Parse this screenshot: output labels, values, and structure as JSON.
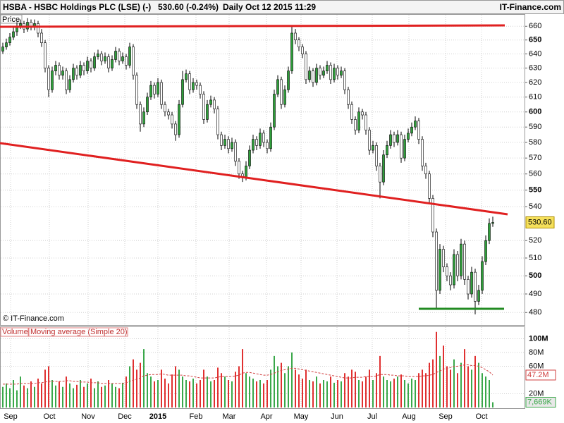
{
  "header": {
    "symbol": "HSBA - HSBC Holdings PLC (LSE) (-)",
    "quote": "530.60 (-0.24%)",
    "period": "Daily  Oct 12 2015 11:29",
    "site": "IT-Finance.com"
  },
  "chart_data": [
    {
      "type": "candlestick",
      "panel_label": "Price",
      "copyright": "© IT-Finance.com",
      "log_scale": true,
      "grid": true,
      "up_color": "#2e9e3a",
      "down_color": "#ffffff",
      "ylim": [
        473,
        669
      ],
      "yticks": [
        480,
        490,
        500,
        510,
        520,
        540,
        550,
        560,
        570,
        580,
        590,
        600,
        610,
        620,
        630,
        640,
        650,
        660
      ],
      "last_label": "530.60",
      "candles": [
        [
          642,
          648,
          640,
          645
        ],
        [
          645,
          651,
          643,
          648
        ],
        [
          648,
          655,
          646,
          652
        ],
        [
          652,
          659,
          650,
          656
        ],
        [
          656,
          663,
          653,
          660
        ],
        [
          660,
          665,
          658,
          662
        ],
        [
          662,
          664,
          655,
          658
        ],
        [
          658,
          666,
          656,
          663
        ],
        [
          663,
          665,
          657,
          660
        ],
        [
          660,
          665,
          657,
          662
        ],
        [
          662,
          664,
          652,
          655
        ],
        [
          655,
          658,
          645,
          648
        ],
        [
          648,
          650,
          627,
          630
        ],
        [
          630,
          632,
          610,
          615
        ],
        [
          615,
          631,
          613,
          628
        ],
        [
          628,
          635,
          625,
          632
        ],
        [
          632,
          634,
          622,
          625
        ],
        [
          625,
          631,
          622,
          628
        ],
        [
          628,
          630,
          612,
          615
        ],
        [
          615,
          625,
          613,
          622
        ],
        [
          622,
          633,
          620,
          630
        ],
        [
          630,
          632,
          622,
          625
        ],
        [
          625,
          635,
          623,
          632
        ],
        [
          632,
          634,
          625,
          628
        ],
        [
          628,
          638,
          626,
          635
        ],
        [
          635,
          637,
          627,
          630
        ],
        [
          630,
          641,
          628,
          638
        ],
        [
          638,
          643,
          636,
          640
        ],
        [
          640,
          642,
          632,
          635
        ],
        [
          635,
          641,
          633,
          638
        ],
        [
          638,
          640,
          627,
          630
        ],
        [
          630,
          639,
          628,
          636
        ],
        [
          636,
          645,
          634,
          642
        ],
        [
          642,
          644,
          632,
          635
        ],
        [
          635,
          641,
          633,
          638
        ],
        [
          638,
          640,
          629,
          632
        ],
        [
          632,
          648,
          630,
          645
        ],
        [
          645,
          647,
          622,
          625
        ],
        [
          625,
          627,
          602,
          605
        ],
        [
          605,
          607,
          587,
          592
        ],
        [
          592,
          603,
          590,
          600
        ],
        [
          600,
          613,
          598,
          610
        ],
        [
          610,
          621,
          608,
          618
        ],
        [
          618,
          620,
          609,
          612
        ],
        [
          612,
          623,
          610,
          620
        ],
        [
          620,
          622,
          602,
          605
        ],
        [
          605,
          607,
          597,
          600
        ],
        [
          600,
          602,
          595,
          598
        ],
        [
          598,
          600,
          589,
          592
        ],
        [
          592,
          594,
          581,
          585
        ],
        [
          585,
          608,
          583,
          605
        ],
        [
          605,
          628,
          603,
          622
        ],
        [
          622,
          629,
          620,
          626
        ],
        [
          626,
          628,
          612,
          615
        ],
        [
          615,
          623,
          613,
          620
        ],
        [
          620,
          622,
          615,
          618
        ],
        [
          618,
          620,
          609,
          612
        ],
        [
          612,
          614,
          592,
          595
        ],
        [
          595,
          608,
          593,
          605
        ],
        [
          605,
          611,
          603,
          608
        ],
        [
          608,
          610,
          599,
          602
        ],
        [
          602,
          604,
          582,
          585
        ],
        [
          585,
          587,
          575,
          578
        ],
        [
          578,
          585,
          576,
          582
        ],
        [
          582,
          584,
          573,
          576
        ],
        [
          576,
          583,
          574,
          580
        ],
        [
          580,
          582,
          565,
          568
        ],
        [
          568,
          570,
          557,
          560
        ],
        [
          560,
          562,
          555,
          558
        ],
        [
          558,
          568,
          556,
          565
        ],
        [
          565,
          578,
          563,
          575
        ],
        [
          575,
          585,
          573,
          582
        ],
        [
          582,
          584,
          575,
          578
        ],
        [
          578,
          589,
          576,
          586
        ],
        [
          586,
          588,
          577,
          580
        ],
        [
          580,
          582,
          573,
          576
        ],
        [
          576,
          593,
          574,
          590
        ],
        [
          590,
          615,
          588,
          612
        ],
        [
          612,
          625,
          610,
          622
        ],
        [
          622,
          624,
          602,
          605
        ],
        [
          605,
          618,
          603,
          615
        ],
        [
          615,
          631,
          613,
          628
        ],
        [
          628,
          660,
          626,
          655
        ],
        [
          655,
          658,
          647,
          650
        ],
        [
          650,
          652,
          642,
          645
        ],
        [
          645,
          647,
          637,
          640
        ],
        [
          640,
          642,
          619,
          622
        ],
        [
          622,
          631,
          620,
          628
        ],
        [
          628,
          630,
          617,
          620
        ],
        [
          620,
          633,
          618,
          630
        ],
        [
          630,
          632,
          622,
          625
        ],
        [
          625,
          631,
          623,
          628
        ],
        [
          628,
          635,
          626,
          632
        ],
        [
          632,
          634,
          619,
          622
        ],
        [
          622,
          633,
          620,
          630
        ],
        [
          630,
          632,
          622,
          625
        ],
        [
          625,
          631,
          623,
          628
        ],
        [
          628,
          630,
          612,
          615
        ],
        [
          615,
          617,
          602,
          605
        ],
        [
          605,
          607,
          592,
          595
        ],
        [
          595,
          597,
          585,
          588
        ],
        [
          588,
          603,
          586,
          600
        ],
        [
          600,
          602,
          595,
          598
        ],
        [
          598,
          600,
          585,
          588
        ],
        [
          588,
          590,
          572,
          575
        ],
        [
          575,
          581,
          573,
          578
        ],
        [
          578,
          580,
          562,
          565
        ],
        [
          565,
          567,
          545,
          555
        ],
        [
          555,
          575,
          553,
          572
        ],
        [
          572,
          581,
          570,
          578
        ],
        [
          578,
          588,
          576,
          585
        ],
        [
          585,
          587,
          577,
          580
        ],
        [
          580,
          588,
          578,
          585
        ],
        [
          585,
          587,
          567,
          570
        ],
        [
          570,
          585,
          568,
          582
        ],
        [
          582,
          589,
          580,
          586
        ],
        [
          586,
          593,
          584,
          590
        ],
        [
          590,
          597,
          588,
          594
        ],
        [
          594,
          596,
          579,
          582
        ],
        [
          582,
          584,
          562,
          565
        ],
        [
          565,
          567,
          557,
          560
        ],
        [
          560,
          562,
          542,
          545
        ],
        [
          545,
          547,
          522,
          525
        ],
        [
          525,
          527,
          482,
          492
        ],
        [
          492,
          518,
          490,
          515
        ],
        [
          515,
          517,
          502,
          505
        ],
        [
          505,
          507,
          497,
          500
        ],
        [
          500,
          502,
          492,
          495
        ],
        [
          495,
          515,
          493,
          512
        ],
        [
          512,
          514,
          497,
          500
        ],
        [
          500,
          521,
          498,
          518
        ],
        [
          518,
          520,
          495,
          498
        ],
        [
          498,
          500,
          487,
          490
        ],
        [
          490,
          505,
          488,
          502
        ],
        [
          502,
          504,
          479,
          486
        ],
        [
          486,
          495,
          484,
          492
        ],
        [
          492,
          511,
          490,
          508
        ],
        [
          508,
          523,
          506,
          520
        ],
        [
          520,
          533,
          518,
          530
        ],
        [
          530,
          534,
          528,
          530.6
        ]
      ]
    },
    {
      "type": "bar",
      "legend": [
        "Volume",
        "Moving average (Simple 20)"
      ],
      "grid": true,
      "ylim": [
        0,
        120
      ],
      "yticks": [
        {
          "value": 20,
          "label": "20M"
        },
        {
          "value": 60,
          "label": "60M"
        },
        {
          "value": 80,
          "label": "80M"
        },
        {
          "value": 100,
          "label": "100M"
        }
      ],
      "xticks": [
        {
          "value": 2.2,
          "label": "Sep"
        },
        {
          "value": 13.2,
          "label": "Oct"
        },
        {
          "value": 24.2,
          "label": "Nov"
        },
        {
          "value": 34.6,
          "label": "Dec"
        },
        {
          "value": 44,
          "label": "2015"
        },
        {
          "value": 54.8,
          "label": "Feb"
        },
        {
          "value": 64.2,
          "label": "Mar"
        },
        {
          "value": 74.8,
          "label": "Apr"
        },
        {
          "value": 84.6,
          "label": "May"
        },
        {
          "value": 94.8,
          "label": "Jun"
        },
        {
          "value": 104.8,
          "label": "Jul"
        },
        {
          "value": 115.2,
          "label": "Aug"
        },
        {
          "value": 125.6,
          "label": "Sep"
        },
        {
          "value": 135.8,
          "label": "Oct"
        }
      ],
      "series": [
        {
          "name": "Volume",
          "color": "#3aa84a",
          "down_color": "#e03030",
          "values": [
            30,
            35,
            28,
            40,
            25,
            45,
            32,
            28,
            38,
            30,
            42,
            35,
            55,
            60,
            40,
            32,
            38,
            30,
            45,
            35,
            28,
            33,
            40,
            30,
            35,
            42,
            28,
            38,
            30,
            32,
            40,
            35,
            30,
            28,
            36,
            45,
            60,
            70,
            55,
            65,
            85,
            50,
            45,
            38,
            40,
            55,
            42,
            35,
            48,
            60,
            55,
            45,
            40,
            38,
            42,
            35,
            40,
            55,
            45,
            38,
            40,
            58,
            50,
            45,
            40,
            38,
            52,
            60,
            85,
            50,
            45,
            42,
            38,
            40,
            35,
            40,
            55,
            75,
            60,
            65,
            50,
            60,
            80,
            55,
            48,
            42,
            55,
            40,
            38,
            45,
            35,
            40,
            38,
            45,
            36,
            40,
            38,
            50,
            45,
            55,
            52,
            40,
            38,
            45,
            55,
            40,
            50,
            75,
            45,
            40,
            38,
            42,
            45,
            48,
            40,
            35,
            42,
            40,
            50,
            55,
            50,
            65,
            70,
            110,
            75,
            90,
            60,
            55,
            70,
            50,
            65,
            85,
            60,
            55,
            75,
            65,
            50,
            45,
            40,
            7.669
          ],
          "last_label": "7,669K"
        },
        {
          "name": "Moving average (Simple 20)",
          "color": "#d04040",
          "values": [
            34,
            34,
            34,
            34,
            34,
            35,
            35,
            35,
            35,
            35,
            36,
            36,
            37,
            38,
            38,
            38,
            38,
            38,
            39,
            39,
            38,
            38,
            37,
            37,
            37,
            36,
            36,
            36,
            35,
            35,
            35,
            35,
            35,
            35,
            35,
            36,
            38,
            40,
            41,
            43,
            46,
            47,
            48,
            48,
            48,
            49,
            48,
            47,
            47,
            47,
            47,
            47,
            46,
            46,
            45,
            44,
            43,
            43,
            43,
            43,
            43,
            44,
            45,
            45,
            45,
            45,
            46,
            47,
            50,
            51,
            51,
            50,
            49,
            48,
            47,
            47,
            48,
            50,
            52,
            54,
            55,
            56,
            57,
            57,
            56,
            55,
            54,
            53,
            52,
            51,
            50,
            49,
            48,
            47,
            46,
            45,
            44,
            43,
            43,
            43,
            44,
            44,
            44,
            45,
            45,
            45,
            46,
            48,
            48,
            48,
            47,
            47,
            46,
            46,
            46,
            45,
            45,
            45,
            45,
            46,
            46,
            47,
            48,
            51,
            53,
            56,
            57,
            58,
            60,
            60,
            61,
            62,
            62,
            61,
            61,
            60,
            58,
            55,
            52,
            47.2
          ],
          "last_label": "47.2M"
        }
      ]
    }
  ]
}
